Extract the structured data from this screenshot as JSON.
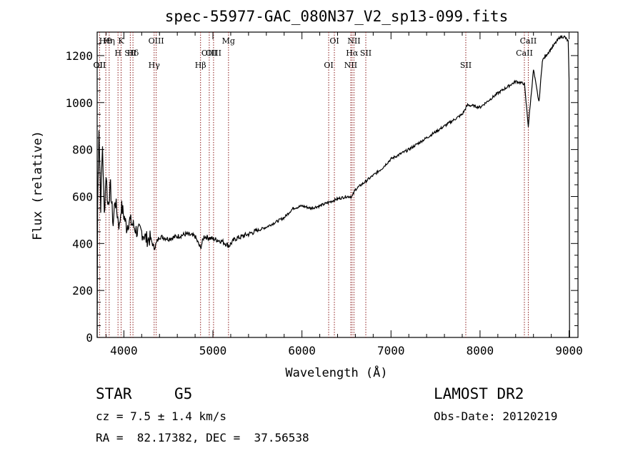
{
  "chart_data": {
    "type": "line",
    "title": "spec-55977-GAC_080N37_V2_sp13-099.fits",
    "xlabel": "Wavelength (Å)",
    "ylabel": "Flux (relative)",
    "xlim": [
      3700,
      9100
    ],
    "ylim": [
      0,
      1300
    ],
    "x_ticks": [
      4000,
      5000,
      6000,
      7000,
      8000,
      9000
    ],
    "y_ticks": [
      0,
      200,
      400,
      600,
      800,
      1000,
      1200
    ],
    "series": [
      {
        "values": [
          [
            3700,
            0
          ],
          [
            3705,
            550
          ],
          [
            3720,
            900
          ],
          [
            3740,
            560
          ],
          [
            3760,
            820
          ],
          [
            3780,
            520
          ],
          [
            3800,
            700
          ],
          [
            3820,
            560
          ],
          [
            3850,
            640
          ],
          [
            3880,
            480
          ],
          [
            3900,
            590
          ],
          [
            3920,
            540
          ],
          [
            3950,
            470
          ],
          [
            3970,
            560
          ],
          [
            4000,
            520
          ],
          [
            4030,
            470
          ],
          [
            4060,
            500
          ],
          [
            4100,
            480
          ],
          [
            4150,
            450
          ],
          [
            4200,
            450
          ],
          [
            4250,
            420
          ],
          [
            4300,
            420
          ],
          [
            4340,
            380
          ],
          [
            4400,
            430
          ],
          [
            4500,
            420
          ],
          [
            4600,
            430
          ],
          [
            4700,
            440
          ],
          [
            4800,
            430
          ],
          [
            4860,
            380
          ],
          [
            4900,
            430
          ],
          [
            5000,
            420
          ],
          [
            5100,
            410
          ],
          [
            5180,
            390
          ],
          [
            5250,
            420
          ],
          [
            5400,
            440
          ],
          [
            5600,
            470
          ],
          [
            5800,
            510
          ],
          [
            5900,
            550
          ],
          [
            6000,
            560
          ],
          [
            6100,
            550
          ],
          [
            6200,
            560
          ],
          [
            6300,
            575
          ],
          [
            6400,
            590
          ],
          [
            6500,
            600
          ],
          [
            6563,
            600
          ],
          [
            6600,
            630
          ],
          [
            6700,
            660
          ],
          [
            6800,
            690
          ],
          [
            6900,
            720
          ],
          [
            7000,
            760
          ],
          [
            7200,
            800
          ],
          [
            7400,
            850
          ],
          [
            7600,
            900
          ],
          [
            7800,
            950
          ],
          [
            7860,
            990
          ],
          [
            8000,
            980
          ],
          [
            8200,
            1040
          ],
          [
            8400,
            1090
          ],
          [
            8498,
            1080
          ],
          [
            8542,
            900
          ],
          [
            8600,
            1140
          ],
          [
            8662,
            1000
          ],
          [
            8700,
            1180
          ],
          [
            8800,
            1230
          ],
          [
            8900,
            1280
          ],
          [
            8950,
            1280
          ],
          [
            8990,
            1260
          ],
          [
            9000,
            1100
          ],
          [
            9005,
            0
          ]
        ]
      }
    ],
    "lines": [
      {
        "label": "HΘ",
        "x": 3797
      },
      {
        "label": "H",
        "x": 3934
      },
      {
        "label": "OII",
        "x": 3727
      },
      {
        "label": "K",
        "x": 3969
      },
      {
        "label": "Hδ",
        "x": 4102
      },
      {
        "label": "OII",
        "x": 3727
      },
      {
        "label": "Hη",
        "x": 3835
      },
      {
        "label": "SII",
        "x": 4072
      },
      {
        "label": "Hγ",
        "x": 4340
      },
      {
        "label": "OIII",
        "x": 4363
      },
      {
        "label": "OIII",
        "x": 4959
      },
      {
        "label": "Hβ",
        "x": 4861
      },
      {
        "label": "Mg",
        "x": 5175
      },
      {
        "label": "OIII",
        "x": 5007
      },
      {
        "label": "OI",
        "x": 6300
      },
      {
        "label": "OI",
        "x": 6364
      },
      {
        "label": "Hα",
        "x": 6563
      },
      {
        "label": "NII",
        "x": 6548
      },
      {
        "label": "NII",
        "x": 6584
      },
      {
        "label": "SII",
        "x": 6717
      },
      {
        "label": "SII",
        "x": 7840
      },
      {
        "label": "CaII",
        "x": 8542
      },
      {
        "label": "CaII",
        "x": 8498
      }
    ],
    "grid": false
  },
  "info": {
    "class_label": "STAR",
    "subclass_label": "G5",
    "survey": "LAMOST DR2",
    "cz": "cz = 7.5 ± 1.4 km/s",
    "obs_date": "Obs-Date: 20120219",
    "coords": "RA =  82.17382, DEC =  37.56538"
  },
  "colors": {
    "line_marker": "#8b1a1a",
    "spectrum": "#000000"
  }
}
